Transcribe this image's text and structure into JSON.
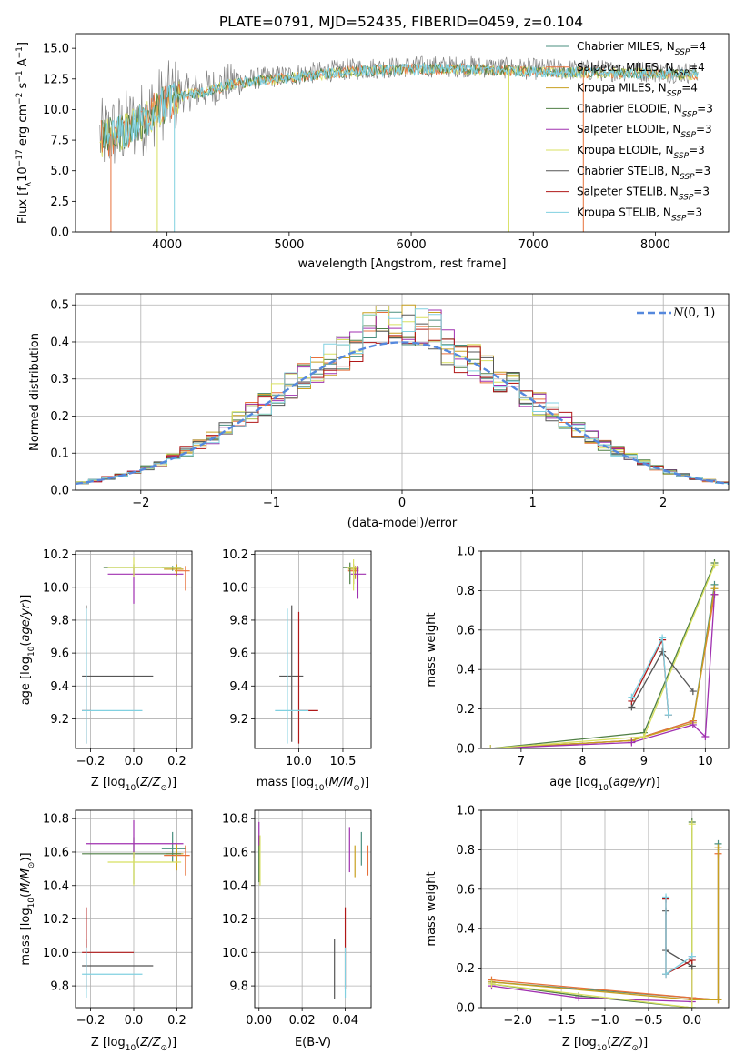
{
  "figure": {
    "title": "PLATE=0791, MJD=52435, FIBERID=0459, z=0.104"
  },
  "colors": {
    "chabrier_miles": "#4a8f7f",
    "salpeter_miles": "#e8703a",
    "kroupa_miles": "#c8a020",
    "chabrier_elodie": "#4f7f44",
    "salpeter_elodie": "#a030b0",
    "kroupa_elodie": "#d8e060",
    "chabrier_stelib": "#555555",
    "salpeter_stelib": "#b01818",
    "kroupa_stelib": "#80d0e0",
    "gaussian": "#5588dd",
    "grid": "#b0b0b0"
  },
  "chart_data": [
    {
      "id": "spectrum",
      "type": "line",
      "xlabel": "wavelength [Angstrom, rest frame]",
      "ylabel": "Flux [f_λ 10^-17 erg cm^-2 s^-1 A^-1]",
      "xlim": [
        3250,
        8600
      ],
      "ylim": [
        0,
        16.2
      ],
      "xticks": [
        4000,
        5000,
        6000,
        7000,
        8000
      ],
      "yticks": [
        0.0,
        2.5,
        5.0,
        7.5,
        10.0,
        12.5,
        15.0
      ],
      "grid": false,
      "legend_position": "right",
      "legend": [
        {
          "label": "Chabrier MILES, N",
          "sub": "SSP",
          "suffix": "=4",
          "color_key": "chabrier_miles"
        },
        {
          "label": "Salpeter MILES, N",
          "sub": "SSP",
          "suffix": "=4",
          "color_key": "salpeter_miles"
        },
        {
          "label": "Kroupa MILES, N",
          "sub": "SSP",
          "suffix": "=4",
          "color_key": "kroupa_miles"
        },
        {
          "label": "Chabrier ELODIE, N",
          "sub": "SSP",
          "suffix": "=3",
          "color_key": "chabrier_elodie"
        },
        {
          "label": "Salpeter ELODIE, N",
          "sub": "SSP",
          "suffix": "=3",
          "color_key": "salpeter_elodie"
        },
        {
          "label": "Kroupa ELODIE, N",
          "sub": "SSP",
          "suffix": "=3",
          "color_key": "kroupa_elodie"
        },
        {
          "label": "Chabrier STELIB, N",
          "sub": "SSP",
          "suffix": "=3",
          "color_key": "chabrier_stelib"
        },
        {
          "label": "Salpeter STELIB, N",
          "sub": "SSP",
          "suffix": "=3",
          "color_key": "salpeter_stelib"
        },
        {
          "label": "Kroupa STELIB, N",
          "sub": "SSP",
          "suffix": "=3",
          "color_key": "kroupa_stelib"
        }
      ],
      "data_range": [
        3450,
        8350
      ],
      "continuum": [
        [
          3450,
          7.7
        ],
        [
          3600,
          8.2
        ],
        [
          3800,
          9.2
        ],
        [
          3950,
          10.5
        ],
        [
          4100,
          11.3
        ],
        [
          4300,
          11.6
        ],
        [
          4500,
          12.2
        ],
        [
          4800,
          12.6
        ],
        [
          5000,
          12.8
        ],
        [
          5500,
          13.3
        ],
        [
          6000,
          13.5
        ],
        [
          6500,
          13.5
        ],
        [
          7000,
          13.3
        ],
        [
          7500,
          13.2
        ],
        [
          8000,
          13.1
        ],
        [
          8350,
          13.0
        ]
      ],
      "spikes": [
        [
          3540,
          0
        ],
        [
          3920,
          0
        ],
        [
          4060,
          0
        ],
        [
          6800,
          0
        ],
        [
          7410,
          0
        ]
      ]
    },
    {
      "id": "residuals",
      "type": "histogram",
      "xlabel": "(data-model)/error",
      "ylabel": "Normed distribution",
      "xlim": [
        -2.5,
        2.5
      ],
      "ylim": [
        0,
        0.53
      ],
      "xticks": [
        -2,
        -1,
        0,
        1,
        2
      ],
      "yticks": [
        0.0,
        0.1,
        0.2,
        0.3,
        0.4,
        0.5
      ],
      "grid": true,
      "bin_width": 0.1,
      "bins_start": -2.5,
      "legend_position": "top-right",
      "legend": [
        {
          "label": "N(0,1)",
          "color_key": "gaussian",
          "dashed": true
        }
      ],
      "series_keys": [
        "chabrier_miles",
        "salpeter_miles",
        "kroupa_miles",
        "chabrier_elodie",
        "salpeter_elodie",
        "kroupa_elodie",
        "chabrier_stelib",
        "salpeter_stelib",
        "kroupa_stelib"
      ]
    },
    {
      "id": "age-vs-Z",
      "type": "scatter",
      "xlabel": "Z [log10(Z/Z⊙)]",
      "ylabel": "age [log10(age/yr)]",
      "xlim": [
        -0.27,
        0.27
      ],
      "ylim": [
        9.02,
        10.22
      ],
      "xticks": [
        -0.2,
        0.0,
        0.2
      ],
      "yticks": [
        9.2,
        9.4,
        9.6,
        9.8,
        10.0,
        10.2
      ],
      "grid": true,
      "points": [
        {
          "x": 0.18,
          "y": 10.12,
          "ex": [
            0.05,
            0.04
          ],
          "ey": [
            0.02,
            0.01
          ],
          "key": "chabrier_miles"
        },
        {
          "x": 0.24,
          "y": 10.1,
          "ex": [
            0.05,
            0.02
          ],
          "ey": [
            0.12,
            0.03
          ],
          "key": "salpeter_miles"
        },
        {
          "x": 0.2,
          "y": 10.11,
          "ex": [
            0.06,
            0.03
          ],
          "ey": [
            0.04,
            0.03
          ],
          "key": "kroupa_miles"
        },
        {
          "x": 0.0,
          "y": 10.12,
          "ex": [
            0.14,
            0.22
          ],
          "ey": [
            0.05,
            0.02
          ],
          "key": "chabrier_elodie"
        },
        {
          "x": 0.0,
          "y": 10.08,
          "ex": [
            0.12,
            0.23
          ],
          "ey": [
            0.18,
            0.04
          ],
          "key": "salpeter_elodie"
        },
        {
          "x": 0.0,
          "y": 10.12,
          "ex": [
            0.12,
            0.22
          ],
          "ey": [
            0.06,
            0.06
          ],
          "key": "kroupa_elodie"
        },
        {
          "x": -0.22,
          "y": 9.46,
          "ex": [
            0.02,
            0.31
          ],
          "ey": [
            0.4,
            0.43
          ],
          "key": "chabrier_stelib"
        },
        {
          "x": -0.22,
          "y": 9.25,
          "ex": [
            0.02,
            0.02
          ],
          "ey": [
            0.2,
            0.2
          ],
          "key": "salpeter_stelib"
        },
        {
          "x": -0.22,
          "y": 9.25,
          "ex": [
            0.02,
            0.26
          ],
          "ey": [
            0.2,
            0.62
          ],
          "key": "kroupa_stelib"
        }
      ]
    },
    {
      "id": "age-vs-mass",
      "type": "scatter",
      "xlabel": "mass [log10(M/M⊙)]",
      "ylabel": "",
      "xlim": [
        9.5,
        10.82
      ],
      "ylim": [
        9.02,
        10.22
      ],
      "xticks": [
        10.0,
        10.5
      ],
      "yticks": [
        9.2,
        9.4,
        9.6,
        9.8,
        10.0,
        10.2
      ],
      "grid": true,
      "points": [
        {
          "x": 10.62,
          "y": 10.12,
          "ex": [
            0.08,
            0.06
          ],
          "ey": [
            0.1,
            0.02
          ],
          "key": "chabrier_miles"
        },
        {
          "x": 10.62,
          "y": 10.1,
          "ex": [
            0.06,
            0.06
          ],
          "ey": [
            0.08,
            0.04
          ],
          "key": "salpeter_miles"
        },
        {
          "x": 10.64,
          "y": 10.11,
          "ex": [
            0.08,
            0.04
          ],
          "ey": [
            0.06,
            0.02
          ],
          "key": "kroupa_miles"
        },
        {
          "x": 10.58,
          "y": 10.12,
          "ex": [
            0.08,
            0.06
          ],
          "ey": [
            0.1,
            0.03
          ],
          "key": "chabrier_elodie"
        },
        {
          "x": 10.67,
          "y": 10.08,
          "ex": [
            0.08,
            0.09
          ],
          "ey": [
            0.15,
            0.05
          ],
          "key": "salpeter_elodie"
        },
        {
          "x": 10.62,
          "y": 10.12,
          "ex": [
            0.07,
            0.05
          ],
          "ey": [
            0.14,
            0.05
          ],
          "key": "kroupa_elodie"
        },
        {
          "x": 9.92,
          "y": 9.46,
          "ex": [
            0.14,
            0.13
          ],
          "ey": [
            0.4,
            0.43
          ],
          "key": "chabrier_stelib"
        },
        {
          "x": 10.0,
          "y": 9.25,
          "ex": [
            0.0,
            0.22
          ],
          "ey": [
            0.2,
            0.6
          ],
          "key": "salpeter_stelib"
        },
        {
          "x": 9.87,
          "y": 9.25,
          "ex": [
            0.14,
            0.24
          ],
          "ey": [
            0.2,
            0.62
          ],
          "key": "kroupa_stelib"
        }
      ]
    },
    {
      "id": "weight-vs-age",
      "type": "line",
      "xlabel": "age [log10(age/yr)]",
      "ylabel": "mass weight",
      "xlim": [
        6.35,
        10.38
      ],
      "ylim": [
        0,
        1.0
      ],
      "xticks": [
        7,
        8,
        9,
        10
      ],
      "yticks": [
        0.0,
        0.2,
        0.4,
        0.6,
        0.8,
        1.0
      ],
      "grid": true,
      "series": [
        {
          "key": "chabrier_miles",
          "x": [
            6.5,
            8.8,
            9.8,
            10.15
          ],
          "y": [
            0.0,
            0.04,
            0.14,
            0.83
          ]
        },
        {
          "key": "salpeter_miles",
          "x": [
            6.5,
            8.8,
            9.8,
            10.15
          ],
          "y": [
            0.0,
            0.04,
            0.14,
            0.78
          ]
        },
        {
          "key": "kroupa_miles",
          "x": [
            6.5,
            8.8,
            9.8,
            10.15
          ],
          "y": [
            0.0,
            0.04,
            0.13,
            0.81
          ]
        },
        {
          "key": "chabrier_elodie",
          "x": [
            6.5,
            9.0,
            10.15
          ],
          "y": [
            0.0,
            0.08,
            0.94
          ]
        },
        {
          "key": "salpeter_elodie",
          "x": [
            6.5,
            8.8,
            9.8,
            10.0,
            10.15
          ],
          "y": [
            0.0,
            0.03,
            0.12,
            0.06,
            0.78
          ]
        },
        {
          "key": "kroupa_elodie",
          "x": [
            6.5,
            9.0,
            10.15
          ],
          "y": [
            0.0,
            0.06,
            0.93
          ]
        },
        {
          "key": "chabrier_stelib",
          "x": [
            8.8,
            9.3,
            9.8
          ],
          "y": [
            0.21,
            0.49,
            0.29
          ]
        },
        {
          "key": "salpeter_stelib",
          "x": [
            8.8,
            9.3,
            9.4
          ],
          "y": [
            0.24,
            0.55,
            0.17
          ]
        },
        {
          "key": "kroupa_stelib",
          "x": [
            8.8,
            9.3,
            9.4
          ],
          "y": [
            0.26,
            0.56,
            0.17
          ]
        }
      ]
    },
    {
      "id": "mass-vs-Z",
      "type": "scatter",
      "xlabel": "Z [log10(Z/Z⊙)]",
      "ylabel": "mass [log10(M/M⊙)]",
      "xlim": [
        -0.27,
        0.27
      ],
      "ylim": [
        9.67,
        10.85
      ],
      "xticks": [
        -0.2,
        0.0,
        0.2
      ],
      "yticks": [
        9.8,
        10.0,
        10.2,
        10.4,
        10.6,
        10.8
      ],
      "grid": true,
      "points": [
        {
          "x": 0.18,
          "y": 10.62,
          "ex": [
            0.05,
            0.06
          ],
          "ey": [
            0.08,
            0.1
          ],
          "key": "chabrier_miles"
        },
        {
          "x": 0.24,
          "y": 10.58,
          "ex": [
            0.1,
            0.02
          ],
          "ey": [
            0.12,
            0.06
          ],
          "key": "salpeter_miles"
        },
        {
          "x": 0.2,
          "y": 10.59,
          "ex": [
            0.05,
            0.03
          ],
          "ey": [
            0.1,
            0.06
          ],
          "key": "kroupa_miles"
        },
        {
          "x": 0.0,
          "y": 10.59,
          "ex": [
            0.24,
            0.22
          ],
          "ey": [
            0.18,
            0.1
          ],
          "key": "chabrier_elodie"
        },
        {
          "x": 0.0,
          "y": 10.65,
          "ex": [
            0.22,
            0.23
          ],
          "ey": [
            0.09,
            0.14
          ],
          "key": "salpeter_elodie"
        },
        {
          "x": 0.0,
          "y": 10.54,
          "ex": [
            0.12,
            0.22
          ],
          "ey": [
            0.14,
            0.06
          ],
          "key": "kroupa_elodie"
        },
        {
          "x": -0.22,
          "y": 9.92,
          "ex": [
            0.02,
            0.31
          ],
          "ey": [
            0.14,
            0.16
          ],
          "key": "chabrier_stelib"
        },
        {
          "x": -0.22,
          "y": 10.0,
          "ex": [
            0.02,
            0.22
          ],
          "ey": [
            0.22,
            0.27
          ],
          "key": "salpeter_stelib"
        },
        {
          "x": -0.22,
          "y": 9.87,
          "ex": [
            0.02,
            0.26
          ],
          "ey": [
            0.14,
            0.16
          ],
          "key": "kroupa_stelib"
        }
      ]
    },
    {
      "id": "mass-vs-ebv",
      "type": "scatter",
      "xlabel": "E(B-V)",
      "ylabel": "",
      "xlim": [
        -0.002,
        0.052
      ],
      "ylim": [
        9.67,
        10.85
      ],
      "xticks": [
        0.0,
        0.02,
        0.04
      ],
      "yticks": [
        9.8,
        10.0,
        10.2,
        10.4,
        10.6,
        10.8
      ],
      "grid": true,
      "points": [
        {
          "x": 0.0475,
          "y": 10.62,
          "ex": [
            0,
            0
          ],
          "ey": [
            0.1,
            0.1
          ],
          "key": "chabrier_miles"
        },
        {
          "x": 0.0505,
          "y": 10.58,
          "ex": [
            0,
            0
          ],
          "ey": [
            0.12,
            0.06
          ],
          "key": "salpeter_miles"
        },
        {
          "x": 0.0445,
          "y": 10.59,
          "ex": [
            0,
            0
          ],
          "ey": [
            0.14,
            0.05
          ],
          "key": "kroupa_miles"
        },
        {
          "x": 0.0,
          "y": 10.6,
          "ex": [
            0,
            0
          ],
          "ey": [
            0.18,
            0.1
          ],
          "key": "chabrier_elodie"
        },
        {
          "x": 0.0,
          "y": 10.7,
          "ex": [
            0,
            0
          ],
          "ey": [
            0.06,
            0.08
          ],
          "key": "salpeter_elodie"
        },
        {
          "x": 0.0005,
          "y": 10.54,
          "ex": [
            0,
            0
          ],
          "ey": [
            0.14,
            0.16
          ],
          "key": "kroupa_elodie"
        },
        {
          "x": 0.035,
          "y": 9.92,
          "ex": [
            0,
            0
          ],
          "ey": [
            0.2,
            0.16
          ],
          "key": "chabrier_stelib"
        },
        {
          "x": 0.04,
          "y": 10.0,
          "ex": [
            0,
            0
          ],
          "ey": [
            0.22,
            0.27
          ],
          "key": "salpeter_stelib"
        },
        {
          "x": 0.04,
          "y": 9.87,
          "ex": [
            0,
            0
          ],
          "ey": [
            0.14,
            0.16
          ],
          "key": "kroupa_stelib"
        },
        {
          "x": 0.042,
          "y": 10.6,
          "ex": [
            0,
            0
          ],
          "ey": [
            0.12,
            0.15
          ],
          "key": "salpeter_elodie"
        }
      ]
    },
    {
      "id": "weight-vs-Z",
      "type": "line",
      "xlabel": "Z [log10(Z/Z⊙)]",
      "ylabel": "mass weight",
      "xlim": [
        -2.42,
        0.42
      ],
      "ylim": [
        0,
        1.0
      ],
      "xticks": [
        -2.0,
        -1.5,
        -1.0,
        -0.5,
        0.0
      ],
      "yticks": [
        0.0,
        0.2,
        0.4,
        0.6,
        0.8,
        1.0
      ],
      "grid": true,
      "series": [
        {
          "key": "chabrier_miles",
          "x": [
            -2.3,
            0.0,
            0.3,
            0.3
          ],
          "y": [
            0.13,
            0.05,
            0.04,
            0.83
          ]
        },
        {
          "key": "salpeter_miles",
          "x": [
            -2.3,
            0.0,
            0.3,
            0.3
          ],
          "y": [
            0.14,
            0.05,
            0.04,
            0.78
          ]
        },
        {
          "key": "kroupa_miles",
          "x": [
            -2.3,
            0.0,
            0.3,
            0.3
          ],
          "y": [
            0.13,
            0.04,
            0.04,
            0.81
          ]
        },
        {
          "key": "chabrier_elodie",
          "x": [
            -2.3,
            -1.3,
            0.0,
            0.0
          ],
          "y": [
            0.12,
            0.06,
            0.0,
            0.94
          ]
        },
        {
          "key": "salpeter_elodie",
          "x": [
            -2.3,
            -1.3,
            0.0,
            0.0
          ],
          "y": [
            0.11,
            0.05,
            0.03,
            0.26
          ]
        },
        {
          "key": "kroupa_elodie",
          "x": [
            -2.3,
            0.0,
            0.0
          ],
          "y": [
            0.12,
            0.0,
            0.93
          ]
        },
        {
          "key": "chabrier_stelib",
          "x": [
            -0.3,
            -0.3,
            0.0,
            0.0
          ],
          "y": [
            0.49,
            0.29,
            0.21,
            0.21
          ]
        },
        {
          "key": "salpeter_stelib",
          "x": [
            -0.3,
            -0.3,
            0.0
          ],
          "y": [
            0.55,
            0.17,
            0.24
          ]
        },
        {
          "key": "kroupa_stelib",
          "x": [
            -0.3,
            -0.3,
            0.0
          ],
          "y": [
            0.56,
            0.17,
            0.26
          ]
        }
      ]
    }
  ]
}
